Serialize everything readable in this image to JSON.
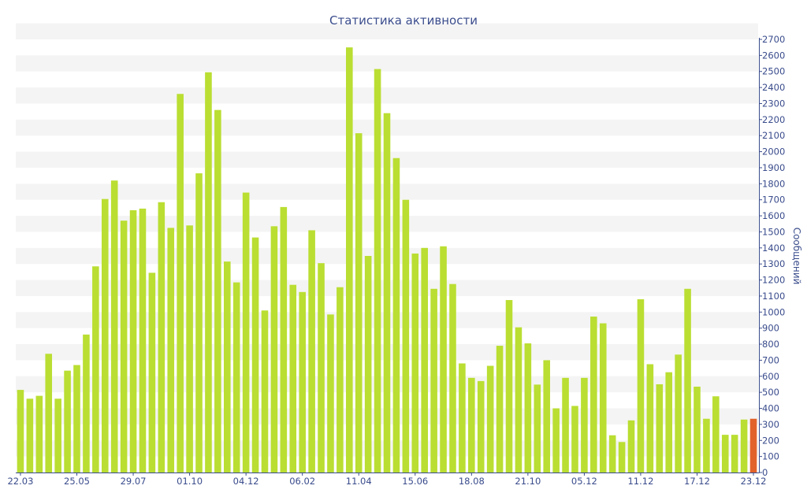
{
  "chart_data": {
    "type": "bar",
    "title": "Статистика активности",
    "ylabel": "Сообщений",
    "xlabel": "",
    "ylim": [
      0,
      2700
    ],
    "y_ticks": [
      0,
      100,
      200,
      300,
      400,
      500,
      600,
      700,
      800,
      900,
      1000,
      1100,
      1200,
      1300,
      1400,
      1500,
      1600,
      1700,
      1800,
      1900,
      2000,
      2100,
      2200,
      2300,
      2400,
      2500,
      2600,
      2700
    ],
    "y_axis_side": "right",
    "grid": "horizontal alternating bands",
    "x_tick_labels": [
      {
        "label": "22.03",
        "index": 0
      },
      {
        "label": "25.05",
        "index": 6
      },
      {
        "label": "29.07",
        "index": 12
      },
      {
        "label": "01.10",
        "index": 18
      },
      {
        "label": "04.12",
        "index": 24
      },
      {
        "label": "06.02",
        "index": 30
      },
      {
        "label": "11.04",
        "index": 36
      },
      {
        "label": "15.06",
        "index": 42
      },
      {
        "label": "18.08",
        "index": 48
      },
      {
        "label": "21.10",
        "index": 54
      },
      {
        "label": "05.12",
        "index": 60
      },
      {
        "label": "11.12",
        "index": 66
      },
      {
        "label": "17.12",
        "index": 72
      },
      {
        "label": "23.12",
        "index": 78
      }
    ],
    "values": [
      515,
      460,
      478,
      740,
      460,
      635,
      670,
      860,
      1285,
      1705,
      1820,
      1570,
      1635,
      1645,
      1245,
      1685,
      1525,
      2360,
      1540,
      1865,
      2495,
      2260,
      1315,
      1185,
      1745,
      1465,
      1010,
      1535,
      1655,
      1170,
      1125,
      1510,
      1305,
      985,
      1155,
      2650,
      2115,
      1350,
      2515,
      2240,
      1960,
      1700,
      1365,
      1400,
      1145,
      1410,
      1175,
      680,
      590,
      570,
      665,
      790,
      1075,
      905,
      805,
      548,
      700,
      400,
      590,
      415,
      590,
      972,
      930,
      232,
      190,
      325,
      1080,
      675,
      550,
      625,
      735,
      1145,
      535,
      335,
      475,
      235,
      235,
      330,
      335
    ],
    "highlight_index": 78,
    "colors": {
      "bar": "#bade32",
      "bar_highlight": "#e2622b",
      "text": "#3a4c8c",
      "band": "#f4f4f4",
      "axis": "#3a4c8c"
    }
  }
}
